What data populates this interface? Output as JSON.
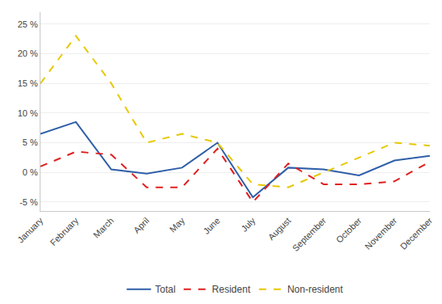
{
  "chart_data": {
    "type": "line",
    "categories": [
      "January",
      "February",
      "March",
      "April",
      "May",
      "June",
      "July",
      "August",
      "September",
      "October",
      "November",
      "December"
    ],
    "series": [
      {
        "name": "Total",
        "color": "#2e5ea8",
        "line_style": "solid",
        "values": [
          6.5,
          8.5,
          0.5,
          -0.2,
          0.8,
          5.0,
          -4.2,
          0.8,
          0.5,
          -0.5,
          2.0,
          2.8
        ]
      },
      {
        "name": "Resident",
        "color": "#e02020",
        "line_style": "dashed",
        "values": [
          1.0,
          3.5,
          3.0,
          -2.5,
          -2.5,
          4.0,
          -5.0,
          1.5,
          -2.0,
          -2.0,
          -1.5,
          1.8
        ]
      },
      {
        "name": "Non-resident",
        "color": "#e8c800",
        "line_style": "dashed",
        "values": [
          15.0,
          23.0,
          15.0,
          5.0,
          6.5,
          5.0,
          -2.0,
          -2.5,
          0.0,
          2.5,
          5.0,
          4.5
        ]
      }
    ],
    "ylim": [
      -6.5,
      27
    ],
    "yticks": [
      {
        "value": -5,
        "label": "-5 %"
      },
      {
        "value": 0,
        "label": "0 %"
      },
      {
        "value": 5,
        "label": "5 %"
      },
      {
        "value": 10,
        "label": "10 %"
      },
      {
        "value": 15,
        "label": "15 %"
      },
      {
        "value": 20,
        "label": "20 %"
      },
      {
        "value": 25,
        "label": "25 %"
      }
    ],
    "grid": true,
    "legend": "bottom"
  }
}
